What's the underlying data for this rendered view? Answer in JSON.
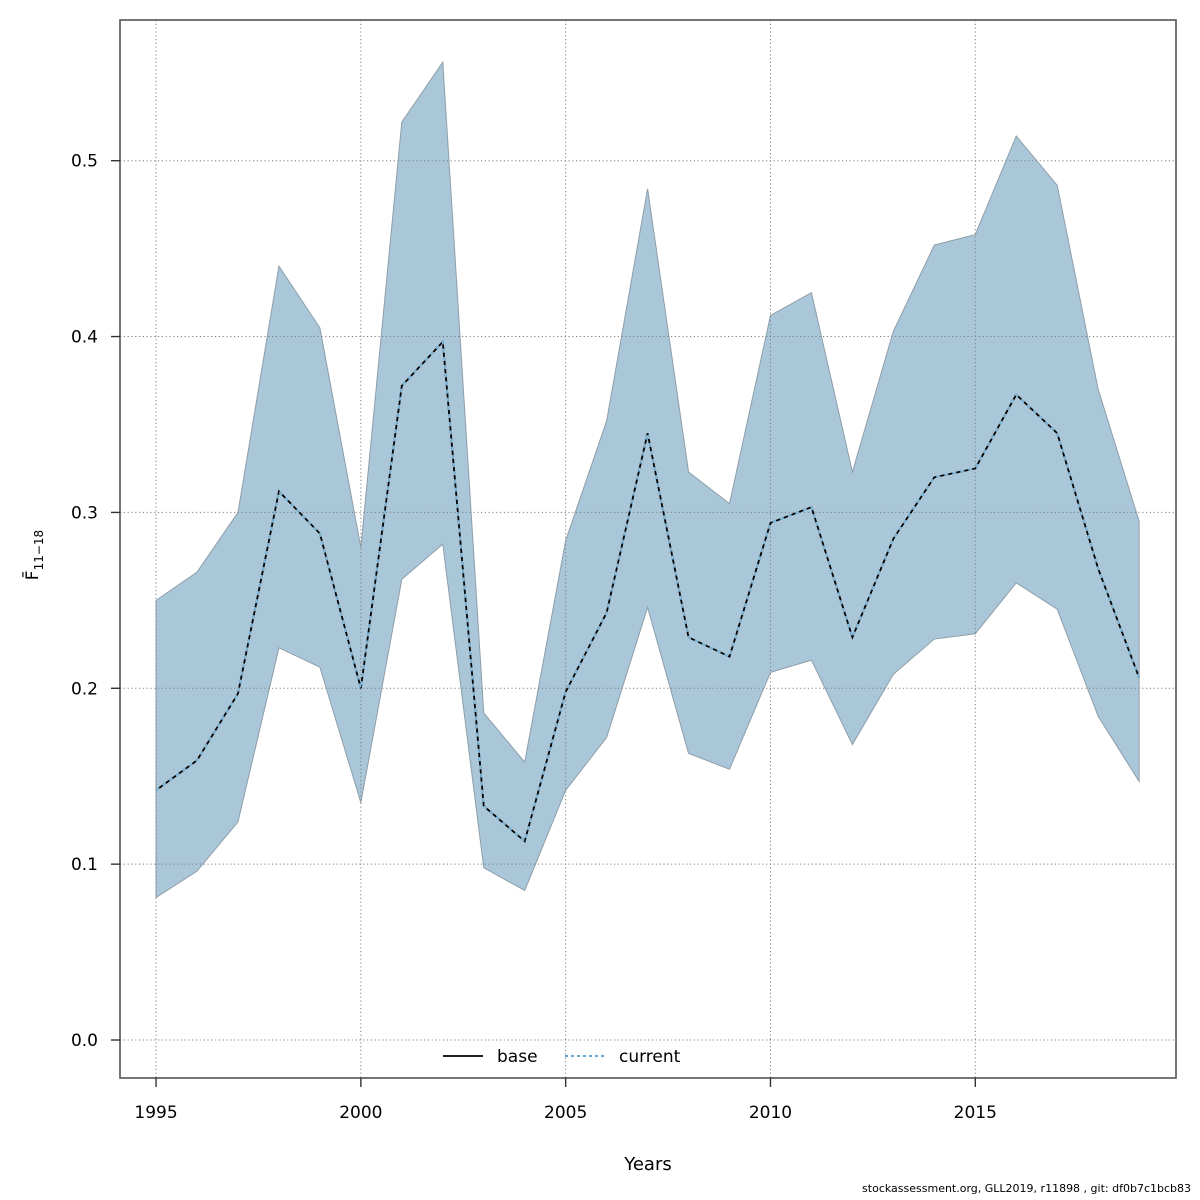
{
  "chart_data": {
    "type": "line",
    "title": "",
    "xlabel": "Years",
    "ylabel": {
      "main": "F̄",
      "sub": "11−18"
    },
    "x": [
      1995,
      1996,
      1997,
      1998,
      1999,
      2000,
      2001,
      2002,
      2003,
      2004,
      2005,
      2006,
      2007,
      2008,
      2009,
      2010,
      2011,
      2012,
      2013,
      2014,
      2015,
      2016,
      2017,
      2018,
      2019
    ],
    "series": [
      {
        "name": "base",
        "style": "solid",
        "color": "#000000",
        "values": [
          0.142,
          0.159,
          0.197,
          0.312,
          0.288,
          0.2,
          0.372,
          0.397,
          0.133,
          0.113,
          0.198,
          0.243,
          0.345,
          0.229,
          0.218,
          0.294,
          0.303,
          0.229,
          0.285,
          0.32,
          0.325,
          0.367,
          0.345,
          0.268,
          0.206
        ]
      },
      {
        "name": "current",
        "style": "dotted",
        "color": "#64a7d0",
        "values": [
          0.142,
          0.159,
          0.197,
          0.312,
          0.288,
          0.2,
          0.372,
          0.397,
          0.133,
          0.113,
          0.198,
          0.243,
          0.345,
          0.229,
          0.218,
          0.294,
          0.303,
          0.229,
          0.285,
          0.32,
          0.325,
          0.367,
          0.345,
          0.268,
          0.206
        ]
      }
    ],
    "band": {
      "series": "current",
      "color": "#a9c7d9",
      "edge_color": "#8e9ea9",
      "lower": [
        0.081,
        0.096,
        0.124,
        0.223,
        0.212,
        0.135,
        0.262,
        0.282,
        0.098,
        0.085,
        0.142,
        0.172,
        0.246,
        0.163,
        0.154,
        0.209,
        0.216,
        0.168,
        0.208,
        0.228,
        0.231,
        0.26,
        0.245,
        0.184,
        0.147
      ],
      "upper": [
        0.25,
        0.266,
        0.3,
        0.44,
        0.405,
        0.28,
        0.522,
        0.556,
        0.186,
        0.158,
        0.284,
        0.352,
        0.484,
        0.323,
        0.305,
        0.412,
        0.425,
        0.323,
        0.403,
        0.452,
        0.458,
        0.514,
        0.486,
        0.37,
        0.295
      ]
    },
    "x_ticks": [
      1995,
      2000,
      2005,
      2010,
      2015
    ],
    "y_ticks": [
      "0.0",
      "0.1",
      "0.2",
      "0.3",
      "0.4",
      "0.5"
    ],
    "y_tick_values": [
      0.0,
      0.1,
      0.2,
      0.3,
      0.4,
      0.5
    ],
    "xlim": [
      1994.12,
      2019.9
    ],
    "ylim": [
      -0.0216,
      0.58
    ],
    "grid": "dotted",
    "legend_position": "bottom-center-inside"
  },
  "legend": {
    "items": [
      {
        "label": "base",
        "line_style": "solid",
        "color": "#000000"
      },
      {
        "label": "current",
        "line_style": "dotted",
        "color": "#64a7d0"
      }
    ]
  },
  "footer": {
    "text": "stockassessment.org, GLL2019, r11898 , git: df0b7c1bcb83"
  }
}
